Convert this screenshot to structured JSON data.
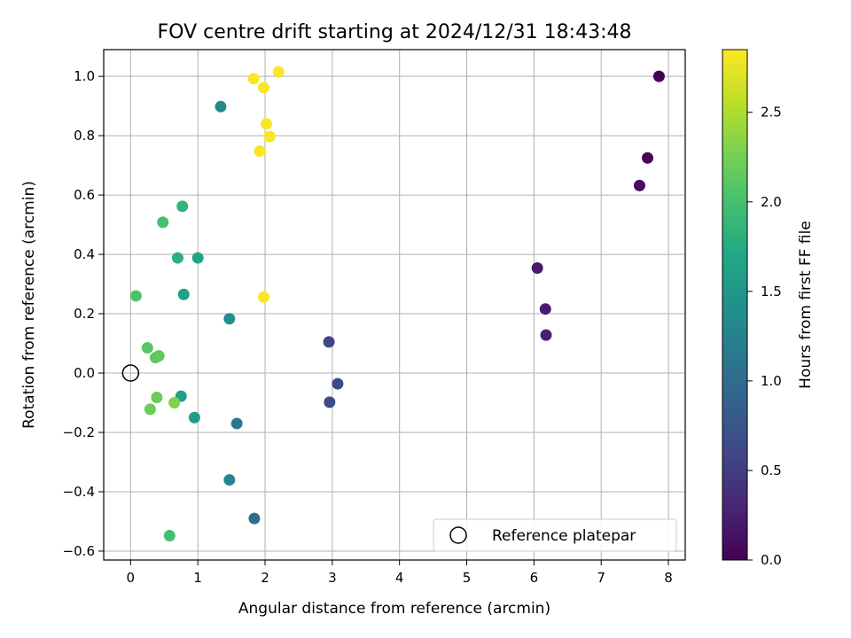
{
  "chart_data": {
    "type": "scatter",
    "title": "FOV centre drift starting at 2024/12/31 18:43:48",
    "xlabel": "Angular distance from reference (arcmin)",
    "ylabel": "Rotation from reference (arcmin)",
    "xlim": [
      -0.4,
      8.25
    ],
    "ylim": [
      -0.63,
      1.09
    ],
    "xticks": [
      "0",
      "1",
      "2",
      "3",
      "4",
      "5",
      "6",
      "7",
      "8"
    ],
    "yticks": [
      "−0.6",
      "−0.4",
      "−0.2",
      "0.0",
      "0.2",
      "0.4",
      "0.6",
      "0.8",
      "1.0"
    ],
    "grid": true,
    "colormap": "viridis",
    "colorbar": {
      "label": "Hours from first FF file",
      "range": [
        0,
        2.85
      ],
      "ticks": [
        "0.0",
        "0.5",
        "1.0",
        "1.5",
        "2.0",
        "2.5"
      ]
    },
    "legend": {
      "position": "lower right",
      "label": "Reference platepar",
      "reference_point": {
        "x": 0,
        "y": 0
      }
    },
    "points": [
      {
        "x": 7.86,
        "y": 1.0,
        "hours": 0.0
      },
      {
        "x": 7.69,
        "y": 0.725,
        "hours": 0.05
      },
      {
        "x": 7.57,
        "y": 0.632,
        "hours": 0.08
      },
      {
        "x": 6.05,
        "y": 0.354,
        "hours": 0.2
      },
      {
        "x": 6.17,
        "y": 0.216,
        "hours": 0.22
      },
      {
        "x": 6.18,
        "y": 0.128,
        "hours": 0.25
      },
      {
        "x": 2.95,
        "y": 0.105,
        "hours": 0.6
      },
      {
        "x": 3.08,
        "y": -0.036,
        "hours": 0.62
      },
      {
        "x": 2.96,
        "y": -0.098,
        "hours": 0.65
      },
      {
        "x": 1.84,
        "y": -0.49,
        "hours": 1.05
      },
      {
        "x": 1.58,
        "y": -0.17,
        "hours": 1.15
      },
      {
        "x": 1.47,
        "y": -0.36,
        "hours": 1.3
      },
      {
        "x": 1.34,
        "y": 0.898,
        "hours": 1.35
      },
      {
        "x": 1.47,
        "y": 0.183,
        "hours": 1.4
      },
      {
        "x": 0.95,
        "y": -0.15,
        "hours": 1.55
      },
      {
        "x": 0.75,
        "y": -0.078,
        "hours": 1.6
      },
      {
        "x": 0.79,
        "y": 0.265,
        "hours": 1.6
      },
      {
        "x": 1.0,
        "y": 0.388,
        "hours": 1.65
      },
      {
        "x": 0.7,
        "y": 0.388,
        "hours": 1.8
      },
      {
        "x": 0.77,
        "y": 0.562,
        "hours": 1.85
      },
      {
        "x": 0.48,
        "y": 0.508,
        "hours": 2.0
      },
      {
        "x": 0.58,
        "y": -0.548,
        "hours": 2.0
      },
      {
        "x": 0.08,
        "y": 0.26,
        "hours": 2.05
      },
      {
        "x": 0.25,
        "y": 0.085,
        "hours": 2.1
      },
      {
        "x": 0.37,
        "y": 0.052,
        "hours": 2.15
      },
      {
        "x": 0.42,
        "y": 0.058,
        "hours": 2.15
      },
      {
        "x": 0.39,
        "y": -0.082,
        "hours": 2.2
      },
      {
        "x": 0.29,
        "y": -0.122,
        "hours": 2.2
      },
      {
        "x": 0.65,
        "y": -0.1,
        "hours": 2.3
      },
      {
        "x": 1.83,
        "y": 0.992,
        "hours": 2.83
      },
      {
        "x": 2.2,
        "y": 1.015,
        "hours": 2.83
      },
      {
        "x": 1.98,
        "y": 0.962,
        "hours": 2.83
      },
      {
        "x": 2.02,
        "y": 0.84,
        "hours": 2.83
      },
      {
        "x": 2.07,
        "y": 0.797,
        "hours": 2.83
      },
      {
        "x": 1.92,
        "y": 0.748,
        "hours": 2.83
      },
      {
        "x": 1.98,
        "y": 0.256,
        "hours": 2.83
      }
    ]
  }
}
